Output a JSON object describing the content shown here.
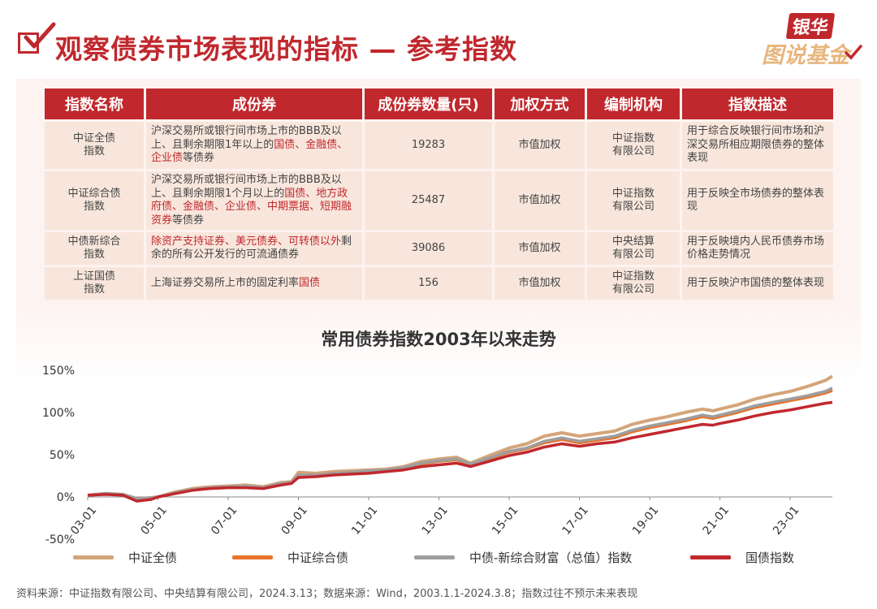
{
  "header": {
    "title": "观察债券市场表现的指标 — 参考指数",
    "logo_top": "银华",
    "logo_bottom": "图说基金"
  },
  "table": {
    "headers": [
      "指数名称",
      "成份券",
      "成份券数量(只)",
      "加权方式",
      "编制机构",
      "指数描述"
    ],
    "rows": [
      {
        "name": "中证全债\n指数",
        "components": [
          {
            "t": "沪深交易所或银行间市场上市的BBB及以上、且剩余期限1年以上的",
            "red": false
          },
          {
            "t": "国债、金融债、企业债",
            "red": true
          },
          {
            "t": "等债券",
            "red": false
          }
        ],
        "count": "19283",
        "weighting": "市值加权",
        "compiler": "中证指数\n有限公司",
        "description": "用于综合反映银行间市场和沪深交易所相应期限债券的整体表现"
      },
      {
        "name": "中证综合债\n指数",
        "components": [
          {
            "t": "沪深交易所或银行间市场上市的BBB及以上、且剩余期限1个月以上的",
            "red": false
          },
          {
            "t": "国债、地方政府债、金融债、企业债、中期票据、短期融资券",
            "red": true
          },
          {
            "t": "等债券",
            "red": false
          }
        ],
        "count": "25487",
        "weighting": "市值加权",
        "compiler": "中证指数\n有限公司",
        "description": "用于反映全市场债券的整体表现"
      },
      {
        "name": "中债新综合\n指数",
        "components": [
          {
            "t": "除资产支持证券、美元债券、可转债以外",
            "red": true
          },
          {
            "t": "剩余的所有公开发行的可流通债券",
            "red": false
          }
        ],
        "count": "39086",
        "weighting": "市值加权",
        "compiler": "中央结算\n有限公司",
        "description": "用于反映境内人民币债券市场价格走势情况"
      },
      {
        "name": "上证国债\n指数",
        "components": [
          {
            "t": "上海证券交易所上市的固定利率",
            "red": false
          },
          {
            "t": "国债",
            "red": true
          }
        ],
        "count": "156",
        "weighting": "市值加权",
        "compiler": "中证指数\n有限公司",
        "description": "用于反映沪市国债的整体表现"
      }
    ]
  },
  "chart_data": {
    "type": "line",
    "title": "常用债券指数2003年以来走势",
    "x_ticks": [
      "03-01",
      "05-01",
      "07-01",
      "09-01",
      "11-01",
      "13-01",
      "15-01",
      "17-01",
      "19-01",
      "21-01",
      "23-01"
    ],
    "x_tick_years": [
      2003,
      2005,
      2007,
      2009,
      2011,
      2013,
      2015,
      2017,
      2019,
      2021,
      2023
    ],
    "x_range": [
      2003.0,
      2024.2
    ],
    "y_ticks": [
      "150%",
      "100%",
      "50%",
      "0%",
      "-50%"
    ],
    "y_tick_values": [
      150,
      100,
      50,
      0,
      -50
    ],
    "ylim": [
      -50,
      150
    ],
    "grid": false,
    "legend_position": "bottom",
    "series": [
      {
        "name": "中证全债",
        "color": "#d4a57a",
        "points": [
          [
            2003.0,
            2
          ],
          [
            2003.5,
            4
          ],
          [
            2004.0,
            3
          ],
          [
            2004.4,
            -2
          ],
          [
            2004.8,
            -1
          ],
          [
            2005.0,
            0
          ],
          [
            2005.5,
            6
          ],
          [
            2006.0,
            10
          ],
          [
            2006.5,
            12
          ],
          [
            2007.0,
            13
          ],
          [
            2007.5,
            14
          ],
          [
            2008.0,
            12
          ],
          [
            2008.5,
            17
          ],
          [
            2008.8,
            18
          ],
          [
            2009.0,
            29
          ],
          [
            2009.5,
            28
          ],
          [
            2010.0,
            30
          ],
          [
            2010.5,
            31
          ],
          [
            2011.0,
            32
          ],
          [
            2011.5,
            33
          ],
          [
            2012.0,
            36
          ],
          [
            2012.5,
            42
          ],
          [
            2013.0,
            45
          ],
          [
            2013.5,
            47
          ],
          [
            2013.9,
            40
          ],
          [
            2014.5,
            50
          ],
          [
            2015.0,
            58
          ],
          [
            2015.5,
            63
          ],
          [
            2016.0,
            72
          ],
          [
            2016.5,
            76
          ],
          [
            2017.0,
            72
          ],
          [
            2017.5,
            75
          ],
          [
            2018.0,
            78
          ],
          [
            2018.5,
            86
          ],
          [
            2019.0,
            91
          ],
          [
            2019.5,
            95
          ],
          [
            2020.0,
            100
          ],
          [
            2020.5,
            104
          ],
          [
            2020.8,
            102
          ],
          [
            2021.0,
            104
          ],
          [
            2021.5,
            109
          ],
          [
            2022.0,
            116
          ],
          [
            2022.5,
            121
          ],
          [
            2023.0,
            125
          ],
          [
            2023.5,
            131
          ],
          [
            2024.0,
            138
          ],
          [
            2024.2,
            143
          ]
        ]
      },
      {
        "name": "中证综合债",
        "color": "#e8732a",
        "points": [
          [
            2003.0,
            2
          ],
          [
            2003.5,
            4
          ],
          [
            2004.0,
            3
          ],
          [
            2004.4,
            -2
          ],
          [
            2004.8,
            -1
          ],
          [
            2005.0,
            0
          ],
          [
            2005.5,
            5
          ],
          [
            2006.0,
            9
          ],
          [
            2006.5,
            11
          ],
          [
            2007.0,
            12
          ],
          [
            2007.5,
            13
          ],
          [
            2008.0,
            11
          ],
          [
            2008.5,
            16
          ],
          [
            2008.8,
            17
          ],
          [
            2009.0,
            26
          ],
          [
            2009.5,
            26
          ],
          [
            2010.0,
            28
          ],
          [
            2010.5,
            29
          ],
          [
            2011.0,
            30
          ],
          [
            2011.5,
            31
          ],
          [
            2012.0,
            34
          ],
          [
            2012.5,
            39
          ],
          [
            2013.0,
            42
          ],
          [
            2013.5,
            44
          ],
          [
            2013.9,
            38
          ],
          [
            2014.5,
            46
          ],
          [
            2015.0,
            53
          ],
          [
            2015.5,
            57
          ],
          [
            2016.0,
            64
          ],
          [
            2016.5,
            68
          ],
          [
            2017.0,
            64
          ],
          [
            2017.5,
            67
          ],
          [
            2018.0,
            70
          ],
          [
            2018.5,
            77
          ],
          [
            2019.0,
            82
          ],
          [
            2019.5,
            86
          ],
          [
            2020.0,
            90
          ],
          [
            2020.5,
            95
          ],
          [
            2020.8,
            93
          ],
          [
            2021.0,
            95
          ],
          [
            2021.5,
            100
          ],
          [
            2022.0,
            106
          ],
          [
            2022.5,
            110
          ],
          [
            2023.0,
            114
          ],
          [
            2023.5,
            118
          ],
          [
            2024.0,
            123
          ],
          [
            2024.2,
            126
          ]
        ]
      },
      {
        "name": "中债-新综合财富（总值）指数",
        "color": "#9e9e9e",
        "points": [
          [
            2003.0,
            2
          ],
          [
            2003.5,
            4
          ],
          [
            2004.0,
            3
          ],
          [
            2004.4,
            -2
          ],
          [
            2004.8,
            -1
          ],
          [
            2005.0,
            0
          ],
          [
            2005.5,
            5
          ],
          [
            2006.0,
            9
          ],
          [
            2006.5,
            11
          ],
          [
            2007.0,
            12
          ],
          [
            2007.5,
            13
          ],
          [
            2008.0,
            11
          ],
          [
            2008.5,
            16
          ],
          [
            2008.8,
            17
          ],
          [
            2009.0,
            26
          ],
          [
            2009.5,
            26
          ],
          [
            2010.0,
            28
          ],
          [
            2010.5,
            29
          ],
          [
            2011.0,
            31
          ],
          [
            2011.5,
            32
          ],
          [
            2012.0,
            35
          ],
          [
            2012.5,
            40
          ],
          [
            2013.0,
            43
          ],
          [
            2013.5,
            45
          ],
          [
            2013.9,
            39
          ],
          [
            2014.5,
            47
          ],
          [
            2015.0,
            54
          ],
          [
            2015.5,
            58
          ],
          [
            2016.0,
            66
          ],
          [
            2016.5,
            70
          ],
          [
            2017.0,
            66
          ],
          [
            2017.5,
            69
          ],
          [
            2018.0,
            72
          ],
          [
            2018.5,
            79
          ],
          [
            2019.0,
            84
          ],
          [
            2019.5,
            88
          ],
          [
            2020.0,
            92
          ],
          [
            2020.5,
            97
          ],
          [
            2020.8,
            95
          ],
          [
            2021.0,
            97
          ],
          [
            2021.5,
            102
          ],
          [
            2022.0,
            108
          ],
          [
            2022.5,
            112
          ],
          [
            2023.0,
            116
          ],
          [
            2023.5,
            120
          ],
          [
            2024.0,
            125
          ],
          [
            2024.2,
            129
          ]
        ]
      },
      {
        "name": "国债指数",
        "color": "#c0282d",
        "points": [
          [
            2003.0,
            2
          ],
          [
            2003.5,
            3
          ],
          [
            2004.0,
            2
          ],
          [
            2004.4,
            -5
          ],
          [
            2004.8,
            -3
          ],
          [
            2005.0,
            0
          ],
          [
            2005.5,
            4
          ],
          [
            2006.0,
            8
          ],
          [
            2006.5,
            10
          ],
          [
            2007.0,
            11
          ],
          [
            2007.5,
            11
          ],
          [
            2008.0,
            10
          ],
          [
            2008.5,
            14
          ],
          [
            2008.8,
            16
          ],
          [
            2009.0,
            23
          ],
          [
            2009.5,
            24
          ],
          [
            2010.0,
            26
          ],
          [
            2010.5,
            27
          ],
          [
            2011.0,
            28
          ],
          [
            2011.5,
            30
          ],
          [
            2012.0,
            32
          ],
          [
            2012.5,
            36
          ],
          [
            2013.0,
            38
          ],
          [
            2013.5,
            40
          ],
          [
            2013.9,
            36
          ],
          [
            2014.5,
            43
          ],
          [
            2015.0,
            49
          ],
          [
            2015.5,
            53
          ],
          [
            2016.0,
            59
          ],
          [
            2016.5,
            63
          ],
          [
            2017.0,
            60
          ],
          [
            2017.5,
            63
          ],
          [
            2018.0,
            65
          ],
          [
            2018.5,
            70
          ],
          [
            2019.0,
            74
          ],
          [
            2019.5,
            78
          ],
          [
            2020.0,
            82
          ],
          [
            2020.5,
            86
          ],
          [
            2020.8,
            85
          ],
          [
            2021.0,
            87
          ],
          [
            2021.5,
            91
          ],
          [
            2022.0,
            96
          ],
          [
            2022.5,
            100
          ],
          [
            2023.0,
            103
          ],
          [
            2023.5,
            107
          ],
          [
            2024.0,
            111
          ],
          [
            2024.2,
            112
          ]
        ]
      }
    ]
  },
  "footer": {
    "text": "资料来源：中证指数有限公司、中央结算有限公司，2024.3.13；数据来源：Wind，2003.1.1-2024.3.8；指数过往不预示未来表现"
  }
}
